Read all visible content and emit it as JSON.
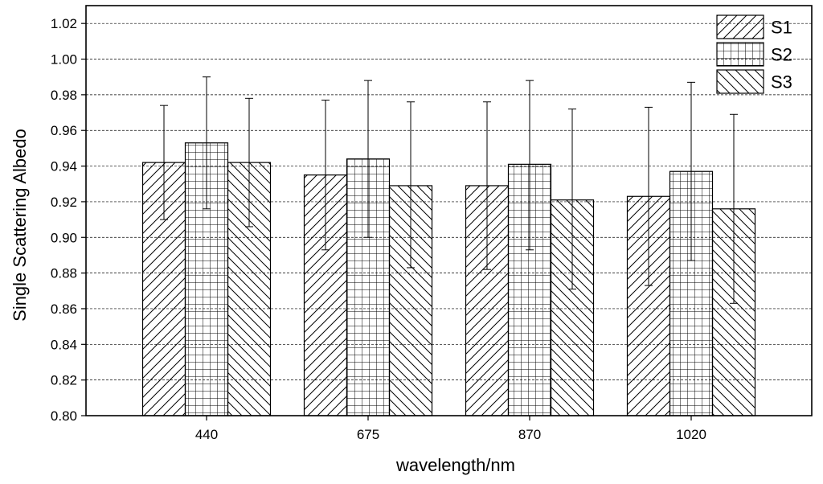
{
  "chart_data": {
    "type": "bar",
    "title": "",
    "xlabel": "wavelength/nm",
    "ylabel": "Single Scattering Albedo",
    "categories": [
      "440",
      "675",
      "870",
      "1020"
    ],
    "ylim": [
      0.8,
      1.03
    ],
    "yticks": [
      "0.80",
      "0.82",
      "0.84",
      "0.86",
      "0.88",
      "0.90",
      "0.92",
      "0.94",
      "0.96",
      "0.98",
      "1.00",
      "1.02"
    ],
    "grid": "horizontal dotted",
    "legend_position": "top-right",
    "series": [
      {
        "name": "S1",
        "pattern": "diagonal-forward",
        "values": [
          0.942,
          0.935,
          0.929,
          0.923
        ],
        "error_upper": [
          0.974,
          0.977,
          0.976,
          0.973
        ],
        "error_lower": [
          0.91,
          0.893,
          0.882,
          0.873
        ]
      },
      {
        "name": "S2",
        "pattern": "grid",
        "values": [
          0.953,
          0.944,
          0.941,
          0.937
        ],
        "error_upper": [
          0.99,
          0.988,
          0.988,
          0.987
        ],
        "error_lower": [
          0.916,
          0.9,
          0.893,
          0.887
        ]
      },
      {
        "name": "S3",
        "pattern": "diagonal-backward",
        "values": [
          0.942,
          0.929,
          0.921,
          0.916
        ],
        "error_upper": [
          0.978,
          0.976,
          0.972,
          0.969
        ],
        "error_lower": [
          0.906,
          0.883,
          0.871,
          0.863
        ]
      }
    ]
  }
}
